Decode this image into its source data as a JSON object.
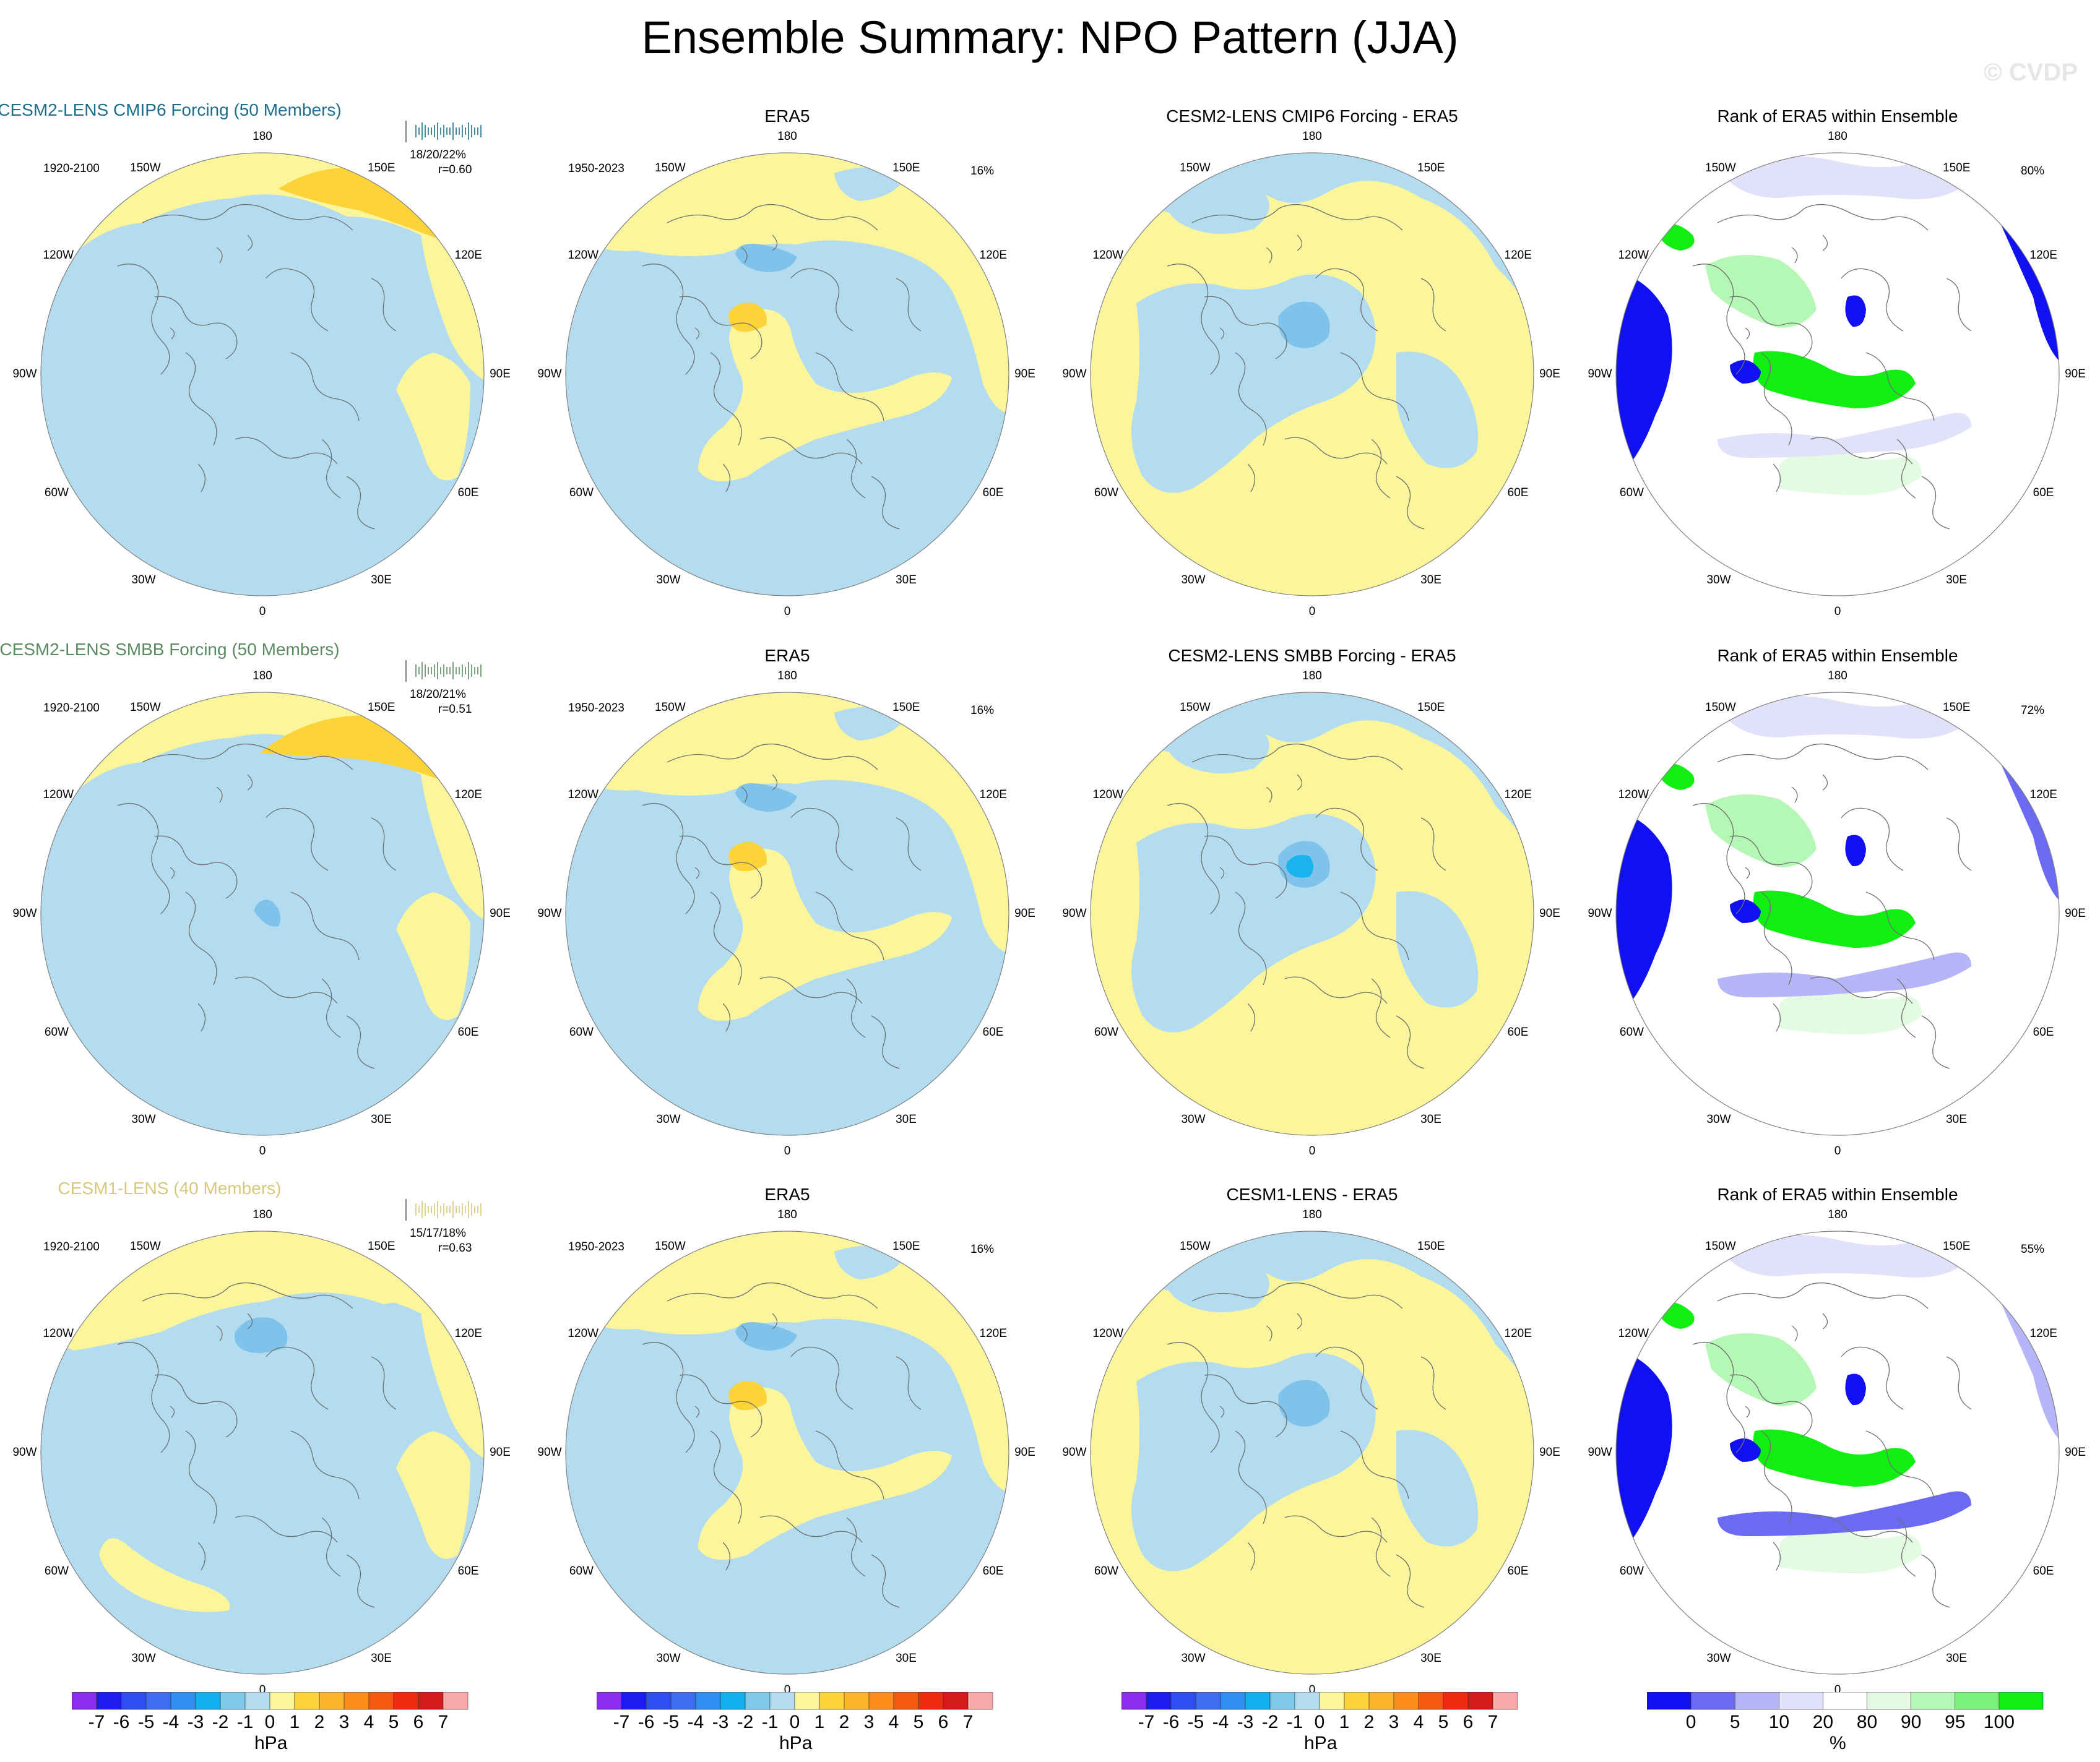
{
  "title": "Ensemble Summary: NPO Pattern (JJA)",
  "watermark": "© CVDP",
  "longitude_labels": [
    "180",
    "150E",
    "120E",
    "90E",
    "60E",
    "30E",
    "0",
    "30W",
    "60W",
    "90W",
    "120W",
    "150W"
  ],
  "colors": {
    "light_blue": "#b3dcf0",
    "mid_blue": "#7fc3ea",
    "bright_blue": "#19b4ef",
    "light_yellow": "#fbf59b",
    "orange_yellow": "#fdd33a",
    "rank_dark_blue": "#1010f0",
    "rank_mid_blue": "#6a6af2",
    "rank_light_blue": "#b5b5f7",
    "rank_pale_blue": "#e1e1fa",
    "rank_pale_green": "#e3fbe3",
    "rank_light_green": "#b5f7b5",
    "rank_mid_green": "#7cf37c",
    "rank_green": "#11ee11"
  },
  "colorbars": {
    "hpa": {
      "labels": [
        "-7",
        "-6",
        "-5",
        "-4",
        "-3",
        "-2",
        "-1",
        "0",
        "1",
        "2",
        "3",
        "4",
        "5",
        "6",
        "7"
      ],
      "colors": [
        "#8c2cf0",
        "#1d1df0",
        "#2f4df0",
        "#3d6ef0",
        "#2e8ff0",
        "#10b0f0",
        "#80c8ea",
        "#b3dcf0",
        "#fbf59b",
        "#fdd33a",
        "#fbb52b",
        "#fb8c1c",
        "#f75a10",
        "#f02c10",
        "#d41a1a",
        "#f7a8a8"
      ],
      "unit": "hPa"
    },
    "rank": {
      "labels": [
        "0",
        "5",
        "10",
        "20",
        "80",
        "90",
        "95",
        "100"
      ],
      "colors": [
        "#1010f0",
        "#6a6af2",
        "#b5b5f7",
        "#e1e1fa",
        "#ffffff",
        "#e3fbe3",
        "#b5f7b5",
        "#7cf37c",
        "#11ee11"
      ],
      "unit": "%"
    }
  },
  "rows": [
    {
      "ensemble": {
        "title": "CESM2-LENS CMIP6 Forcing (50 Members)",
        "title_color": "#1e6e8c",
        "period": "1920-2100",
        "stats": "18/20/22%",
        "corr": "r=0.60"
      },
      "obs": {
        "title": "ERA5",
        "period": "1950-2023",
        "pct": "16%"
      },
      "diff": {
        "title": "CESM2-LENS CMIP6 Forcing - ERA5"
      },
      "rank": {
        "title": "Rank of ERA5 within Ensemble",
        "pct": "80%"
      }
    },
    {
      "ensemble": {
        "title": "CESM2-LENS SMBB Forcing (50 Members)",
        "title_color": "#5a8a62",
        "period": "1920-2100",
        "stats": "18/20/21%",
        "corr": "r=0.51"
      },
      "obs": {
        "title": "ERA5",
        "period": "1950-2023",
        "pct": "16%"
      },
      "diff": {
        "title": "CESM2-LENS SMBB Forcing - ERA5"
      },
      "rank": {
        "title": "Rank of ERA5 within Ensemble",
        "pct": "72%"
      }
    },
    {
      "ensemble": {
        "title": "CESM1-LENS (40 Members)",
        "title_color": "#d8c97a",
        "period": "1920-2100",
        "stats": "15/17/18%",
        "corr": "r=0.63"
      },
      "obs": {
        "title": "ERA5",
        "period": "1950-2023",
        "pct": "16%"
      },
      "diff": {
        "title": "CESM1-LENS - ERA5"
      },
      "rank": {
        "title": "Rank of ERA5 within Ensemble",
        "pct": "55%"
      }
    }
  ],
  "chart_data": {
    "type": "heatmap",
    "title": "Ensemble Summary: NPO Pattern (JJA)",
    "projection": "north polar stereographic",
    "colorbar_hpa_levels": [
      -7,
      -6,
      -5,
      -4,
      -3,
      -2,
      -1,
      0,
      1,
      2,
      3,
      4,
      5,
      6,
      7
    ],
    "colorbar_rank_levels": [
      0,
      5,
      10,
      20,
      80,
      90,
      95,
      100
    ],
    "panels": [
      {
        "row": 1,
        "column": 1,
        "title": "CESM2-LENS CMIP6 Forcing (50 Members)",
        "period": "1920-2100",
        "explained_variance": "18/20/22%",
        "pattern_correlation": 0.6
      },
      {
        "row": 1,
        "column": 2,
        "title": "ERA5",
        "period": "1950-2023",
        "explained_variance": "16%"
      },
      {
        "row": 1,
        "column": 3,
        "title": "CESM2-LENS CMIP6 Forcing - ERA5"
      },
      {
        "row": 1,
        "column": 4,
        "title": "Rank of ERA5 within Ensemble",
        "percent": "80%"
      },
      {
        "row": 2,
        "column": 1,
        "title": "CESM2-LENS SMBB Forcing (50 Members)",
        "period": "1920-2100",
        "explained_variance": "18/20/21%",
        "pattern_correlation": 0.51
      },
      {
        "row": 2,
        "column": 2,
        "title": "ERA5",
        "period": "1950-2023",
        "explained_variance": "16%"
      },
      {
        "row": 2,
        "column": 3,
        "title": "CESM2-LENS SMBB Forcing - ERA5"
      },
      {
        "row": 2,
        "column": 4,
        "title": "Rank of ERA5 within Ensemble",
        "percent": "72%"
      },
      {
        "row": 3,
        "column": 1,
        "title": "CESM1-LENS (40 Members)",
        "period": "1920-2100",
        "explained_variance": "15/17/18%",
        "pattern_correlation": 0.63
      },
      {
        "row": 3,
        "column": 2,
        "title": "ERA5",
        "period": "1950-2023",
        "explained_variance": "16%"
      },
      {
        "row": 3,
        "column": 3,
        "title": "CESM1-LENS - ERA5"
      },
      {
        "row": 3,
        "column": 4,
        "title": "Rank of ERA5 within Ensemble",
        "percent": "55%"
      }
    ]
  }
}
